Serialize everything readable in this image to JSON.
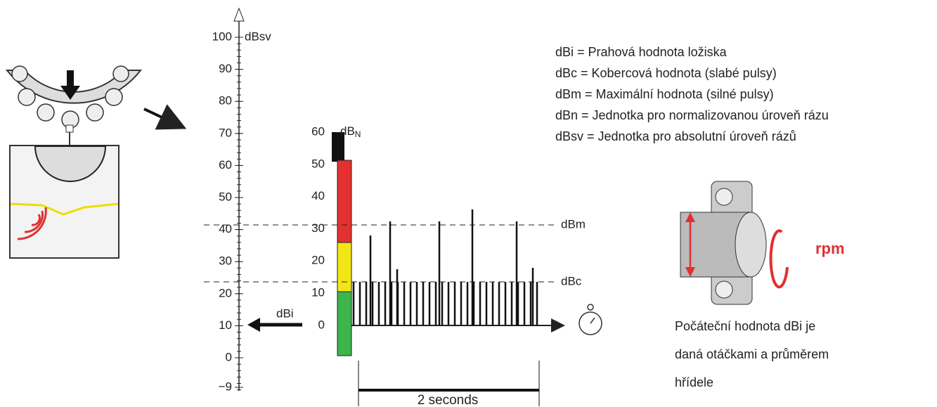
{
  "left_scale": {
    "unit": "dBsv",
    "ticks": [
      "100",
      "90",
      "80",
      "70",
      "60",
      "50",
      "40",
      "30",
      "20",
      "10",
      "0",
      "−9"
    ]
  },
  "right_scale": {
    "unit": "dB",
    "unit_subscript": "N",
    "ticks": [
      "60",
      "50",
      "40",
      "30",
      "20",
      "10",
      "0"
    ]
  },
  "levels": {
    "max": "dBm",
    "carpet": "dBc",
    "threshold": "dBi"
  },
  "time_span": "2 seconds",
  "legend": [
    "dBi = Prahová hodnota ložiska",
    "dBc = Kobercová hodnota (slabé pulsy)",
    "dBm = Maximální hodnota (silné pulsy)",
    "dBn = Jednotka pro normalizovanou úroveň rázu",
    "dBsv = Jednotka pro absolutní úroveň rázů"
  ],
  "shaft": {
    "speed_label": "rpm",
    "caption": [
      "Počáteční hodnota dBi je",
      "daná otáčkami a průměrem",
      "hřídele"
    ]
  }
}
